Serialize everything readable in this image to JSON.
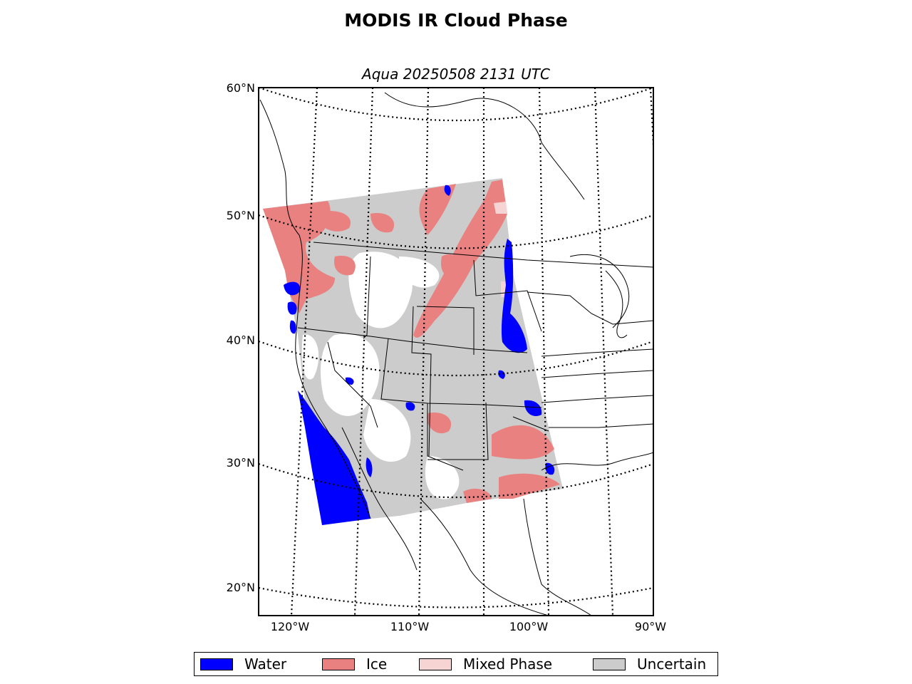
{
  "title": "MODIS IR Cloud Phase",
  "subtitle": "Aqua 20250508 2131 UTC",
  "lat_labels": [
    "60°N",
    "50°N",
    "40°N",
    "30°N",
    "20°N"
  ],
  "lon_labels": [
    "120°W",
    "110°W",
    "100°W",
    "90°W"
  ],
  "legend": [
    {
      "label": "Water",
      "color": "#0000ff"
    },
    {
      "label": "Ice",
      "color": "#e8817f"
    },
    {
      "label": "Mixed Phase",
      "color": "#f7d4d4"
    },
    {
      "label": "Uncertain",
      "color": "#cccccc"
    }
  ],
  "colors": {
    "water": "#0000ff",
    "ice": "#e8817f",
    "mixed": "#f7d4d4",
    "uncertain": "#cccccc"
  }
}
